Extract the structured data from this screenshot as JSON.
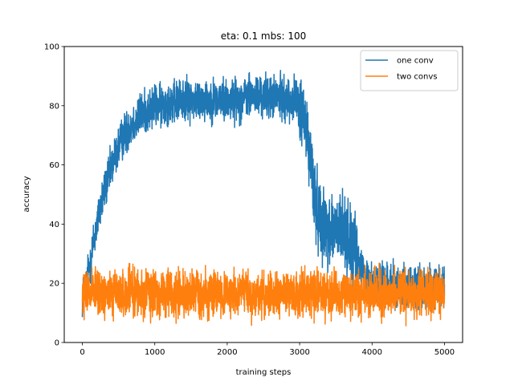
{
  "chart_data": {
    "type": "line",
    "title": "eta: 0.1 mbs: 100",
    "xlabel": "training steps",
    "ylabel": "accuracy",
    "xlim": [
      -250,
      5250
    ],
    "ylim": [
      0,
      100
    ],
    "xticks": [
      0,
      1000,
      2000,
      3000,
      4000,
      5000
    ],
    "yticks": [
      0,
      20,
      40,
      60,
      80,
      100
    ],
    "legend": "top-right",
    "grid": false,
    "series": [
      {
        "name": "one conv",
        "color": "#1f77b4",
        "x": [
          0,
          50,
          100,
          150,
          200,
          250,
          300,
          350,
          400,
          450,
          500,
          550,
          600,
          650,
          700,
          750,
          800,
          850,
          900,
          950,
          1000,
          1050,
          1100,
          1150,
          1200,
          1250,
          1300,
          1350,
          1400,
          1450,
          1500,
          1550,
          1600,
          1650,
          1700,
          1750,
          1800,
          1850,
          1900,
          1950,
          2000,
          2050,
          2100,
          2150,
          2200,
          2250,
          2300,
          2350,
          2400,
          2450,
          2500,
          2550,
          2600,
          2650,
          2700,
          2750,
          2800,
          2850,
          2900,
          2950,
          3000,
          3050,
          3100,
          3150,
          3200,
          3250,
          3300,
          3350,
          3400,
          3450,
          3500,
          3550,
          3600,
          3650,
          3700,
          3750,
          3800,
          3850,
          3900,
          3950,
          4000,
          4050,
          4100,
          4150,
          4200,
          4250,
          4300,
          4350,
          4400,
          4450,
          4500,
          4550,
          4600,
          4650,
          4700,
          4750,
          4800,
          4850,
          4900,
          4950,
          5000
        ],
        "values": [
          15,
          19,
          26,
          33,
          40,
          46,
          51,
          55,
          59,
          63,
          66,
          69,
          71,
          73,
          74,
          75,
          77,
          78,
          78,
          79,
          80,
          80,
          80,
          81,
          81,
          81,
          81,
          82,
          82,
          82,
          82,
          82,
          82,
          82,
          82,
          82,
          82,
          82,
          82,
          82,
          82,
          82,
          82,
          82,
          82,
          83,
          83,
          83,
          83,
          83,
          83,
          83,
          83,
          83,
          83,
          83,
          82,
          82,
          82,
          82,
          80,
          76,
          70,
          62,
          50,
          44,
          42,
          40,
          38,
          38,
          38,
          37,
          38,
          36,
          33,
          30,
          27,
          25,
          22,
          21,
          20,
          20,
          20,
          20,
          20,
          20,
          20,
          19,
          19,
          19,
          19,
          19,
          19,
          19,
          19,
          19,
          19,
          18,
          18,
          18,
          18
        ]
      },
      {
        "name": "two convs",
        "color": "#ff7f0e",
        "x": [
          0,
          50,
          100,
          150,
          200,
          250,
          300,
          350,
          400,
          450,
          500,
          550,
          600,
          650,
          700,
          750,
          800,
          850,
          900,
          950,
          1000,
          1050,
          1100,
          1150,
          1200,
          1250,
          1300,
          1350,
          1400,
          1450,
          1500,
          1550,
          1600,
          1650,
          1700,
          1750,
          1800,
          1850,
          1900,
          1950,
          2000,
          2050,
          2100,
          2150,
          2200,
          2250,
          2300,
          2350,
          2400,
          2450,
          2500,
          2550,
          2600,
          2650,
          2700,
          2750,
          2800,
          2850,
          2900,
          2950,
          3000,
          3050,
          3100,
          3150,
          3200,
          3250,
          3300,
          3350,
          3400,
          3450,
          3500,
          3550,
          3600,
          3650,
          3700,
          3750,
          3800,
          3850,
          3900,
          3950,
          4000,
          4050,
          4100,
          4150,
          4200,
          4250,
          4300,
          4350,
          4400,
          4450,
          4500,
          4550,
          4600,
          4650,
          4700,
          4750,
          4800,
          4850,
          4900,
          4950,
          5000
        ],
        "values": [
          16,
          17,
          16,
          17,
          16,
          17,
          16,
          17,
          16,
          17,
          16,
          17,
          16,
          17,
          17,
          16,
          17,
          16,
          17,
          16,
          17,
          16,
          17,
          16,
          17,
          16,
          17,
          16,
          17,
          16,
          17,
          16,
          17,
          16,
          17,
          16,
          17,
          16,
          17,
          16,
          17,
          16,
          17,
          16,
          17,
          16,
          17,
          16,
          17,
          16,
          17,
          16,
          17,
          16,
          17,
          16,
          17,
          16,
          17,
          16,
          17,
          16,
          17,
          16,
          17,
          16,
          17,
          16,
          17,
          16,
          17,
          16,
          17,
          16,
          17,
          16,
          17,
          16,
          17,
          16,
          17,
          16,
          17,
          16,
          17,
          16,
          17,
          16,
          17,
          16,
          17,
          16,
          17,
          16,
          17,
          16,
          17,
          16,
          17,
          16,
          17
        ]
      }
    ]
  }
}
